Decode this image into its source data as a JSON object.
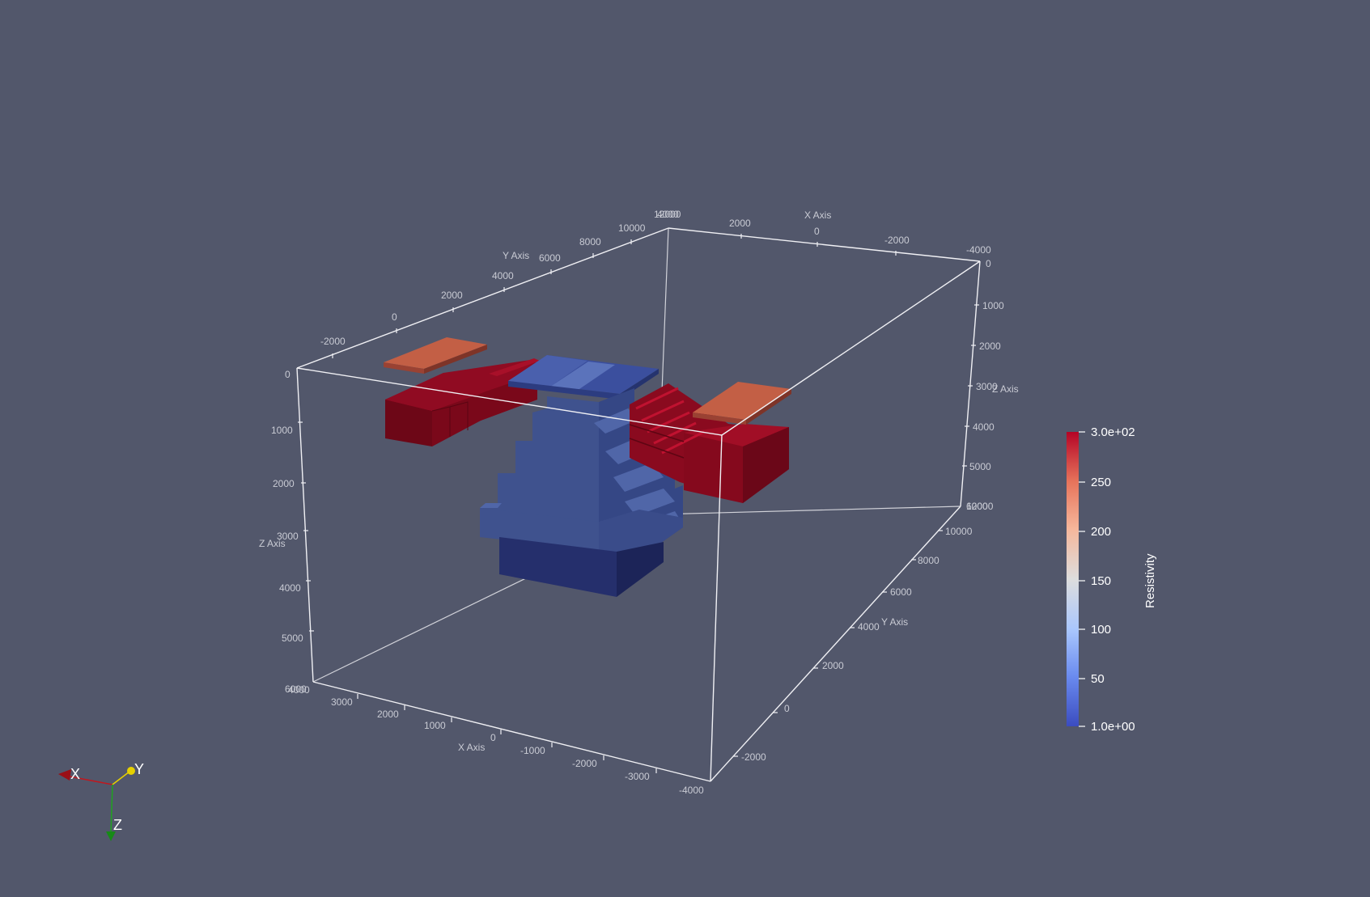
{
  "scene": {
    "background": "#52576b",
    "axes_color": "#e8e8ec",
    "colors": {
      "red": "#8d0a1f",
      "red_dark": "#6a0615",
      "orange": "#b8563e",
      "blue": "#3e5290",
      "blue_top": "#4d66a8",
      "navy": "#25306e"
    }
  },
  "cube_axes": {
    "x_axis_title_front": "X Axis",
    "x_axis_title_back": "X Axis",
    "y_axis_title_left": "Y Axis",
    "y_axis_title_right": "Y Axis",
    "z_axis_title_left": "Z Axis",
    "z_axis_title_right": "Z Axis",
    "x_ticks_front": [
      "4000",
      "3000",
      "2000",
      "1000",
      "0",
      "-1000",
      "-2000",
      "-3000",
      "-4000"
    ],
    "x_ticks_back": [
      "4000",
      "2000",
      "0",
      "-2000",
      "-4000"
    ],
    "y_ticks_left": [
      "-2000",
      "0",
      "2000",
      "4000",
      "6000",
      "8000",
      "10000",
      "12000"
    ],
    "y_ticks_right": [
      "-2000",
      "0",
      "2000",
      "4000",
      "6000",
      "8000",
      "10000",
      "12000"
    ],
    "z_ticks_left": [
      "0",
      "1000",
      "2000",
      "3000",
      "4000",
      "5000",
      "6000"
    ],
    "z_ticks_right": [
      "0",
      "1000",
      "2000",
      "3000",
      "4000",
      "5000",
      "6000"
    ]
  },
  "colorbar": {
    "title": "Resistivity",
    "max_label": "3.0e+02",
    "min_label": "1.0e+00",
    "range": [
      1,
      300
    ],
    "ticks": [
      "250",
      "200",
      "150",
      "100",
      "50"
    ],
    "colormap": [
      "#3b4cc0",
      "#6a8bef",
      "#aac7fd",
      "#dddddd",
      "#f6b79b",
      "#e7745b",
      "#b40426"
    ]
  },
  "orientation": {
    "x_label": "X",
    "y_label": "Y",
    "z_label": "Z",
    "x_color": "#c0181f",
    "y_color": "#e6d000",
    "z_color": "#1fa31f"
  }
}
